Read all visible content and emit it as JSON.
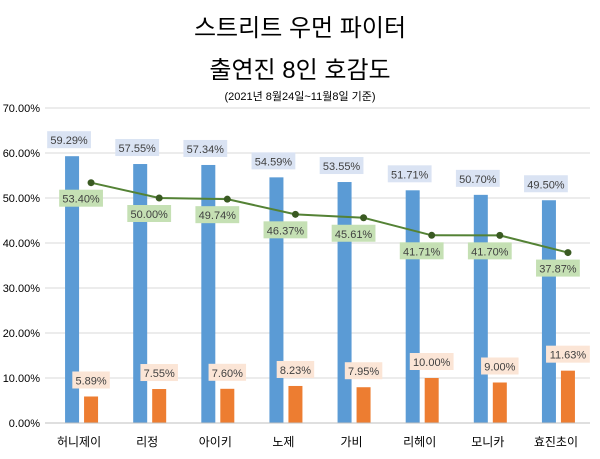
{
  "chart_data": {
    "type": "bar",
    "title": "스트리트 우먼 파이터",
    "subtitle": "출연진 8인 호감도",
    "note": "(2021년 8월24일~11월8일 기준)",
    "categories": [
      "허니제이",
      "리정",
      "아이키",
      "노제",
      "가비",
      "리헤이",
      "모니카",
      "효진초이"
    ],
    "series": [
      {
        "kind": "bar",
        "color": "#5b9bd5",
        "label_bg": "#dae3f3",
        "values": [
          59.29,
          57.55,
          57.34,
          54.59,
          53.55,
          51.71,
          50.7,
          49.5
        ]
      },
      {
        "kind": "bar",
        "color": "#ed7d31",
        "label_bg": "#fbe5d6",
        "values": [
          5.89,
          7.55,
          7.6,
          8.23,
          7.95,
          10.0,
          9.0,
          11.63
        ]
      },
      {
        "kind": "line",
        "color": "#548235",
        "label_bg": "#c5e0b4",
        "values": [
          53.4,
          50.0,
          49.74,
          46.37,
          45.61,
          41.71,
          41.7,
          37.87
        ]
      }
    ],
    "ylim": [
      0,
      70
    ],
    "yticks": [
      "0.00%",
      "10.00%",
      "20.00%",
      "30.00%",
      "40.00%",
      "50.00%",
      "60.00%",
      "70.00%"
    ],
    "grid": true
  }
}
